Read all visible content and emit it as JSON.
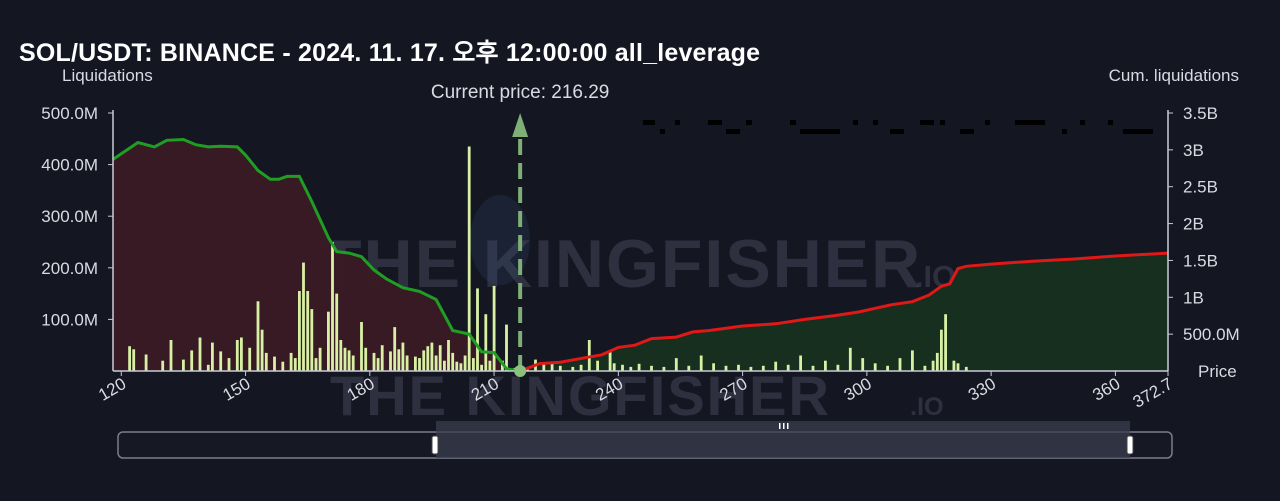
{
  "title": "SOL/USDT: BINANCE - 2024. 11. 17. 오후 12:00:00 all_leverage",
  "chart_data": {
    "type": "bar",
    "left_axis": {
      "label": "Liquidations",
      "range": [
        0,
        500000000
      ],
      "ticks": [
        "100.0M",
        "200.0M",
        "300.0M",
        "400.0M",
        "500.0M"
      ]
    },
    "right_axis": {
      "label": "Cum. liquidations",
      "range": [
        0,
        3500000000
      ],
      "ticks": [
        "500.0M",
        "1B",
        "1.5B",
        "2B",
        "2.5B",
        "3B",
        "3.5B"
      ]
    },
    "x_axis": {
      "label": "Price",
      "range": [
        118,
        372.7
      ],
      "ticks": [
        "120",
        "150",
        "180",
        "210",
        "240",
        "270",
        "300",
        "330",
        "360",
        "372.7"
      ]
    },
    "current_price": {
      "label": "Current price: 216.29",
      "value": 216.29
    },
    "watermark": {
      "brand": "THE KINGFISHER",
      "suffix": ".IO"
    },
    "colors": {
      "long_cum": "#1f9e24",
      "short_cum": "#e01818",
      "long_fill": "#3a1a25",
      "short_fill": "#16301f",
      "bars": "#d7f0a4",
      "current_price": "#7fae77"
    },
    "series": [
      {
        "name": "long_cum",
        "x": [
          118,
          124,
          128,
          131,
          135,
          138,
          141,
          144,
          148,
          150,
          153,
          156,
          158,
          160,
          163,
          166,
          170,
          172,
          175,
          178,
          181,
          184,
          188,
          192,
          196,
          200,
          204,
          207,
          210,
          213,
          216.29
        ],
        "y": [
          2870000000,
          3100000000,
          3040000000,
          3130000000,
          3140000000,
          3070000000,
          3040000000,
          3050000000,
          3040000000,
          2930000000,
          2720000000,
          2600000000,
          2600000000,
          2640000000,
          2640000000,
          2300000000,
          1810000000,
          1620000000,
          1600000000,
          1550000000,
          1370000000,
          1250000000,
          1130000000,
          1080000000,
          970000000,
          550000000,
          500000000,
          260000000,
          250000000,
          30000000,
          0
        ]
      },
      {
        "name": "short_cum",
        "x": [
          216.29,
          221,
          226,
          232,
          236,
          240,
          244,
          248,
          254,
          258,
          262,
          270,
          278,
          285,
          292,
          298,
          302,
          306,
          311,
          315,
          318,
          320,
          322,
          324,
          330,
          340,
          350,
          360,
          372.7
        ],
        "y": [
          0,
          100000000,
          120000000,
          180000000,
          220000000,
          320000000,
          350000000,
          440000000,
          460000000,
          530000000,
          550000000,
          610000000,
          640000000,
          700000000,
          750000000,
          800000000,
          850000000,
          900000000,
          940000000,
          1030000000,
          1150000000,
          1180000000,
          1390000000,
          1420000000,
          1450000000,
          1490000000,
          1520000000,
          1560000000,
          1600000000
        ]
      },
      {
        "name": "liquidation_bars",
        "x": [
          122,
          123,
          126,
          130,
          132,
          135,
          137,
          139,
          141,
          142,
          144,
          146,
          148,
          149,
          151,
          153,
          154,
          155,
          157,
          159,
          161,
          162,
          163,
          164,
          165,
          166,
          167,
          168,
          170,
          171,
          172,
          173,
          174,
          175,
          176,
          178,
          179,
          181,
          182,
          183,
          185,
          186,
          187,
          188,
          189,
          191,
          192,
          193,
          194,
          195,
          196,
          197,
          198,
          199,
          200,
          201,
          202,
          203,
          204,
          205,
          206,
          207,
          208,
          209,
          210,
          212,
          213,
          215,
          218,
          220,
          222,
          224,
          226,
          229,
          231,
          233,
          235,
          238,
          239,
          241,
          243,
          245,
          248,
          251,
          254,
          257,
          260,
          263,
          266,
          269,
          272,
          275,
          278,
          281,
          284,
          287,
          290,
          293,
          296,
          299,
          302,
          305,
          308,
          311,
          314,
          316,
          317,
          318,
          319,
          321,
          322,
          324
        ],
        "y": [
          48000000,
          42000000,
          32000000,
          20000000,
          60000000,
          22000000,
          40000000,
          65000000,
          12000000,
          55000000,
          38000000,
          25000000,
          60000000,
          65000000,
          45000000,
          135000000,
          80000000,
          35000000,
          28000000,
          18000000,
          35000000,
          25000000,
          155000000,
          210000000,
          155000000,
          120000000,
          25000000,
          45000000,
          115000000,
          250000000,
          150000000,
          60000000,
          45000000,
          40000000,
          30000000,
          95000000,
          45000000,
          35000000,
          25000000,
          50000000,
          38000000,
          85000000,
          42000000,
          55000000,
          30000000,
          28000000,
          25000000,
          40000000,
          48000000,
          55000000,
          30000000,
          50000000,
          20000000,
          60000000,
          35000000,
          18000000,
          15000000,
          30000000,
          435000000,
          25000000,
          160000000,
          12000000,
          110000000,
          20000000,
          165000000,
          20000000,
          90000000,
          6000000,
          4000000,
          22000000,
          14000000,
          18000000,
          10000000,
          8000000,
          12000000,
          60000000,
          20000000,
          40000000,
          15000000,
          12000000,
          8000000,
          14000000,
          10000000,
          8000000,
          25000000,
          10000000,
          30000000,
          15000000,
          10000000,
          12000000,
          8000000,
          10000000,
          18000000,
          12000000,
          30000000,
          10000000,
          20000000,
          12000000,
          45000000,
          25000000,
          15000000,
          10000000,
          25000000,
          40000000,
          10000000,
          20000000,
          35000000,
          80000000,
          110000000,
          20000000,
          15000000,
          8000000
        ]
      }
    ]
  }
}
